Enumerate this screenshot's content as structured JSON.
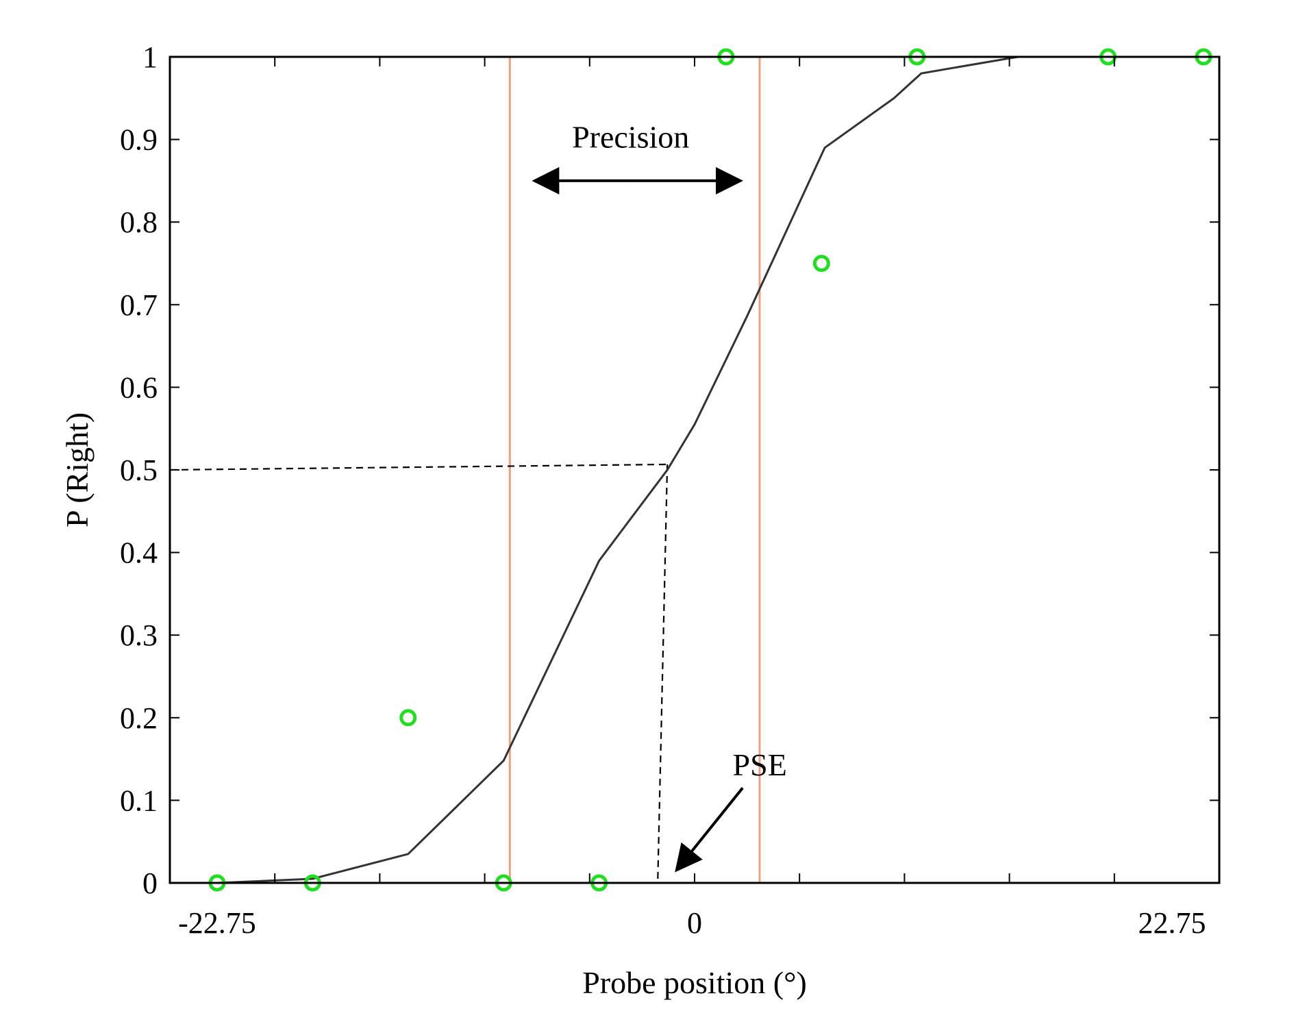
{
  "chart_data": {
    "type": "line",
    "xlabel": "Probe position (°)",
    "ylabel": "P (Right)",
    "xlim": [
      -25,
      25
    ],
    "ylim": [
      0,
      1
    ],
    "x_tick_labels": [
      {
        "value": -22.75,
        "label": "-22.75"
      },
      {
        "value": 0,
        "label": "0"
      },
      {
        "value": 22.75,
        "label": "22.75"
      }
    ],
    "x_minor_ticks": [
      -20,
      -15,
      -10,
      -5,
      0,
      5,
      10,
      15,
      20
    ],
    "y_ticks": [
      0,
      0.1,
      0.2,
      0.3,
      0.4,
      0.5,
      0.6,
      0.7,
      0.8,
      0.9,
      1
    ],
    "y_tick_labels": [
      "0",
      "0.1",
      "0.2",
      "0.3",
      "0.4",
      "0.5",
      "0.6",
      "0.7",
      "0.8",
      "0.9",
      "1"
    ],
    "grid": false,
    "fitted_curve": {
      "color": "#333333",
      "points": [
        [
          -25,
          0
        ],
        [
          -22.75,
          0
        ],
        [
          -18.2,
          0.005
        ],
        [
          -13.65,
          0.035
        ],
        [
          -9.1,
          0.148
        ],
        [
          -4.55,
          0.39
        ],
        [
          -1.3,
          0.5
        ],
        [
          0,
          0.555
        ],
        [
          2.5,
          0.686
        ],
        [
          6.2,
          0.89
        ],
        [
          9.5,
          0.95
        ],
        [
          10.8,
          0.98
        ],
        [
          15.4,
          1.0
        ],
        [
          25,
          1.0
        ]
      ]
    },
    "observed_points": {
      "color": "#22dd22",
      "x": [
        -22.75,
        -18.2,
        -13.65,
        -9.1,
        -4.55,
        1.5,
        6.05,
        10.6,
        19.7,
        24.25
      ],
      "y": [
        0,
        0,
        0.2,
        0,
        0,
        1,
        0.75,
        1,
        1,
        1
      ]
    },
    "reference_lines": {
      "color": "#f0a080",
      "x": [
        -8.8,
        3.1
      ]
    },
    "pse": {
      "x": -1.3,
      "y": 0.5
    },
    "annotations": [
      {
        "name": "precision",
        "text": "Precision"
      },
      {
        "name": "pse",
        "text": "PSE"
      }
    ]
  }
}
